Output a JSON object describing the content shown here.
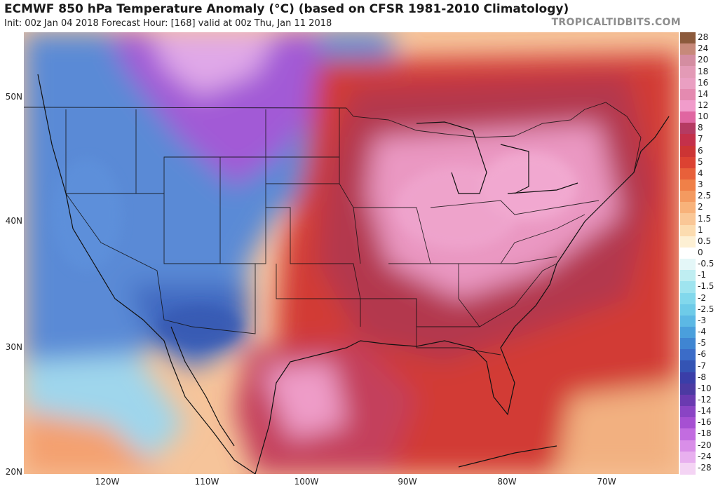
{
  "header": {
    "title": "ECMWF 850 hPa Temperature Anomaly (°C) (based on CFSR 1981-2010 Climatology)",
    "subtitle": "Init: 00z Jan 04 2018   Forecast Hour: [168]   valid at 00z Thu, Jan 11 2018",
    "brand": "TROPICALTIDBITS.COM"
  },
  "axes": {
    "lat_labels": [
      "50N",
      "40N",
      "30N",
      "20N"
    ],
    "lon_labels": [
      "120W",
      "110W",
      "100W",
      "90W",
      "80W",
      "70W"
    ]
  },
  "colorbar": {
    "labels": [
      "28",
      "24",
      "20",
      "18",
      "16",
      "14",
      "12",
      "10",
      "8",
      "7",
      "6",
      "5",
      "4",
      "3",
      "2.5",
      "2",
      "1.5",
      "1",
      "0.5",
      "0",
      "-0.5",
      "-1",
      "-1.5",
      "-2",
      "-2.5",
      "-3",
      "-4",
      "-5",
      "-6",
      "-7",
      "-8",
      "-10",
      "-12",
      "-14",
      "-16",
      "-18",
      "-20",
      "-24",
      "-28"
    ],
    "colors": [
      "#8c5a3c",
      "#c7897a",
      "#d48da1",
      "#e39ab6",
      "#ea9fc2",
      "#e48ab0",
      "#f19ccb",
      "#e066a1",
      "#b53a62",
      "#c4304a",
      "#cc3434",
      "#dc4232",
      "#e8603a",
      "#f08048",
      "#f49a60",
      "#f8b27a",
      "#fac796",
      "#fcdcb0",
      "#fdf0d4",
      "#ffffff",
      "#e4f7f8",
      "#bfeef2",
      "#9fe4ef",
      "#82d8ec",
      "#6ecbe8",
      "#5cb8e4",
      "#4a9fdc",
      "#3f85d2",
      "#3b6cc8",
      "#3454b4",
      "#3a3ea8",
      "#4c3aa2",
      "#6a3ab0",
      "#8a44c4",
      "#a650d2",
      "#c26ce0",
      "#d98ee8",
      "#e8b0ef",
      "#f4d4f4"
    ]
  },
  "map": {
    "region": "CONUS",
    "colors": {
      "ocean_west": "#f4c8a0",
      "west_cold": "#5b8ad8",
      "northwest_purple": "#a45cd8",
      "central_warm": "#b3384e",
      "east_pink": "#ee9cc8",
      "atlantic_red": "#d7352e",
      "coastline": "#111111"
    }
  }
}
